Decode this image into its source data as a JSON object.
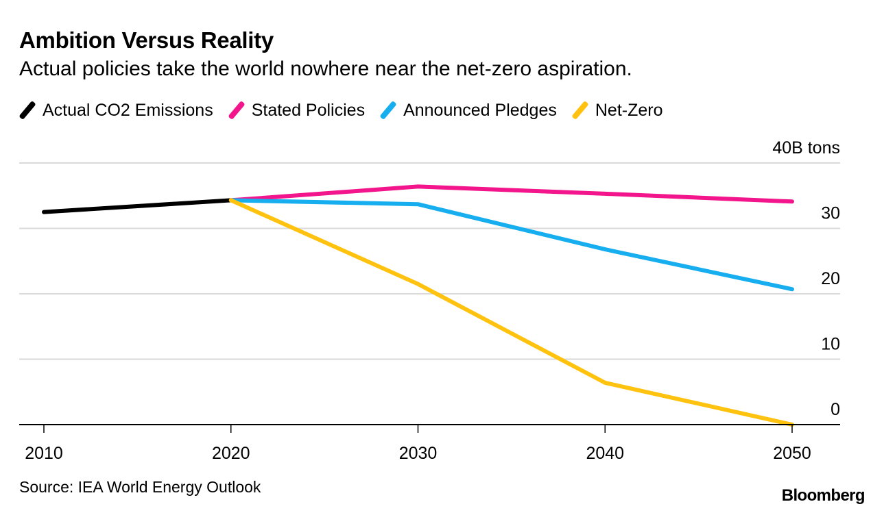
{
  "title": "Ambition Versus Reality",
  "subtitle": "Actual policies take the world nowhere near the net-zero aspiration.",
  "source": "Source: IEA World Energy Outlook",
  "brand": "Bloomberg",
  "chart_data": {
    "type": "line",
    "title": "Ambition Versus Reality",
    "subtitle": "Actual policies take the world nowhere near the net-zero aspiration.",
    "xlabel": "",
    "ylabel": "B tons",
    "y_unit_label": "40B tons",
    "x_ticks": [
      "2010",
      "2020",
      "2030",
      "2040",
      "2050"
    ],
    "y_ticks": [
      "0",
      "10",
      "20",
      "30",
      "40B tons"
    ],
    "ylim": [
      0,
      40
    ],
    "xlim": [
      2008.7,
      2052.6
    ],
    "grid": true,
    "y_axis_position": "right",
    "legend_position": "top-left",
    "series": [
      {
        "name": "Actual CO2 Emissions",
        "color": "#000000",
        "x": [
          2010,
          2020
        ],
        "values": [
          32.5,
          34.3
        ]
      },
      {
        "name": "Stated Policies",
        "color": "#f2158c",
        "x": [
          2020,
          2030,
          2040,
          2050
        ],
        "values": [
          34.3,
          36.4,
          35.3,
          34.1
        ]
      },
      {
        "name": "Announced Pledges",
        "color": "#17aef0",
        "x": [
          2020,
          2030,
          2040,
          2050
        ],
        "values": [
          34.3,
          33.7,
          26.8,
          20.7
        ]
      },
      {
        "name": "Net-Zero",
        "color": "#ffc20e",
        "x": [
          2020,
          2030,
          2040,
          2050
        ],
        "values": [
          34.3,
          21.5,
          6.4,
          0
        ]
      }
    ]
  }
}
